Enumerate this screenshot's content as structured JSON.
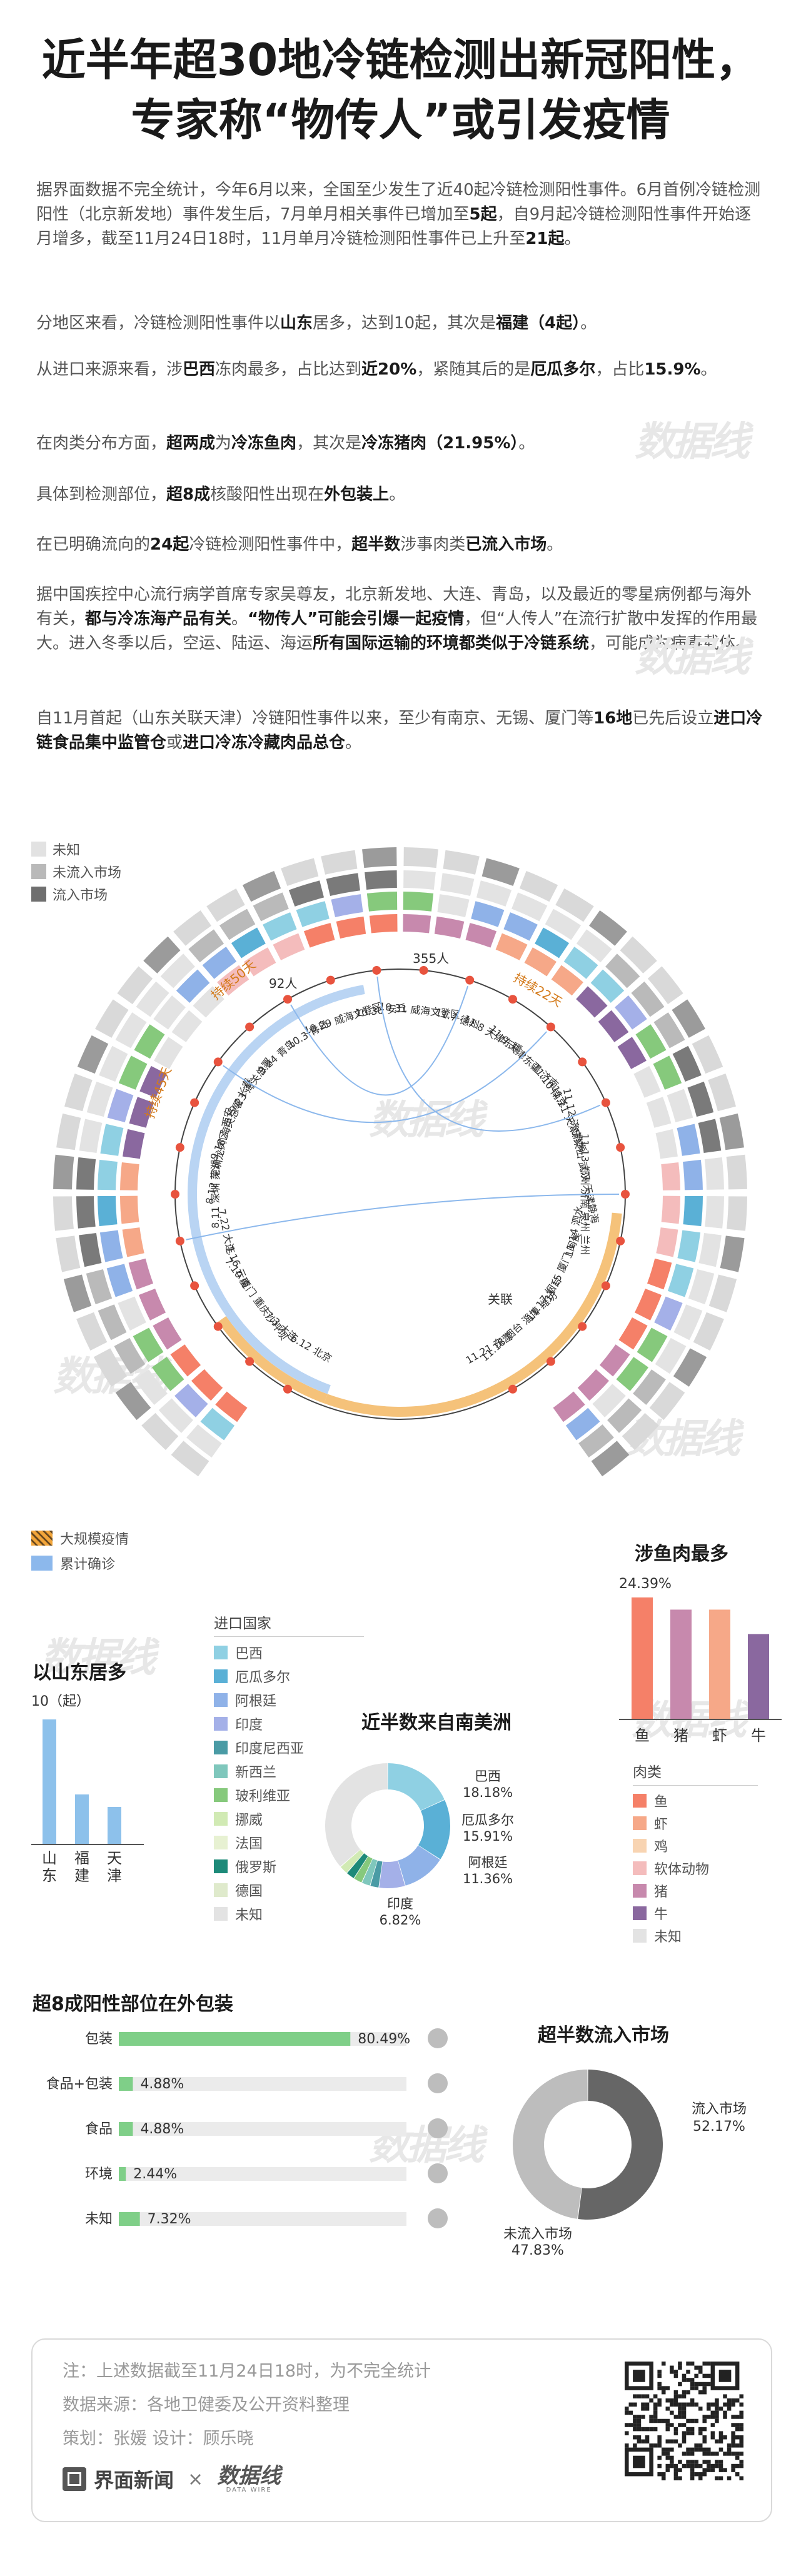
{
  "title_lines": [
    "近半年超30地冷链检测出新冠阳性，",
    "专家称“物传人”或引发疫情"
  ],
  "intro": {
    "p1": [
      "据界面数据不完全统计，今年6月以来，全国至少发生了近40起冷链检测阳性事件。6月首例冷链检测阳性（北京新发地）事件发生后，7月单月相关事件已增加至",
      "5起",
      "，自9月起冷链检测阳性事件开始逐月增多，截至11月24日18时，11月单月冷链检测阳性事件已上升至",
      "21起",
      "。"
    ],
    "p2": [
      "分地区来看，冷链检测阳性事件以",
      "山东",
      "居多，达到10起，其次是",
      "福建（4起）",
      "。"
    ],
    "p3": [
      "从进口来源来看，涉",
      "巴西",
      "冻肉最多，占比达到",
      "近20%",
      "，紧随其后的是",
      "厄瓜多尔",
      "，占比",
      "15.9%",
      "。"
    ],
    "p4": [
      "在肉类分布方面，",
      "超两成",
      "为",
      "冷冻鱼肉",
      "，其次是",
      "冷冻猪肉（21.95%）",
      "。"
    ],
    "p5": [
      "具体到检测部位，",
      "超8成",
      "核酸阳性出现在",
      "外包装上",
      "。"
    ],
    "p6": [
      "在已明确流向的",
      "24起",
      "冷链检测阳性事件中，",
      "超半数",
      "涉事肉类",
      "已流入市场",
      "。"
    ],
    "p7": [
      "据中国疾控中心流行病学首席专家吴尊友，北京新发地、大连、青岛，以及最近的零星病例都与海外有关，",
      "都与冷冻海产品有关",
      "。",
      "“物传人”可能会引爆一起疫情",
      "，但“人传人”在流行扩散中发挥的作用最大。进入冬季以后，空运、陆运、海运",
      "所有国际运输的环境都类似于冷链系统",
      "，可能成为病毒载体。"
    ],
    "p8": [
      "自11月首起（山东关联天津）冷链阳性事件以来，至少有南京、无锡、厦门等",
      "16地",
      "已先后设立",
      "进口冷链食品集中监管仓",
      "或",
      "进口冷冻冷藏肉品总仓",
      "。"
    ]
  },
  "watermark": "数据线",
  "radial_legend": [
    {
      "label": "未知",
      "color": "#e2e2e2"
    },
    {
      "label": "未流入市场",
      "color": "#b9b9b9"
    },
    {
      "label": "流入市场",
      "color": "#6f6f6f"
    }
  ],
  "radial_annotations": {
    "top_count": "355人",
    "c92": "92人",
    "badges": [
      "持续50天",
      "持续45天",
      "持续22天"
    ],
    "guanlian": "关联",
    "dates": [
      "6.12 北京",
      "7.3 大连",
      "7.10 厦门 重庆沙坪坝",
      "7.16 云南",
      "7.22 大连",
      "8.11 深圳 芜湖",
      "8.12 深圳龙岗区 西安",
      "9.18 海关总署 长春",
      "9.23 海关总署",
      "9.24 青岛",
      "10.3 青岛",
      "10.29 威海文登区",
      "10.30 安丘",
      "10.31 威海文登区",
      "11.7 德州",
      "11.8 天津东疆",
      "11.9 天津东疆 济南",
      "11.10 南京",
      "11.11 天津静海",
      "11.12 济宁梁山 武汉 天津静海",
      "11.13 郑州 济南 泉州 兰州",
      "11.14 泗水",
      "11.15 厦门 闽侯",
      "11.17 烟台",
      "11.18 烟台 淄博 潍坊",
      "11.21 东营"
    ]
  },
  "time_legend": [
    {
      "label": "大规模疫情",
      "color": "#f2a53a"
    },
    {
      "label": "累计确诊",
      "color": "#8cb8ec"
    }
  ],
  "fish_chart": {
    "title": "涉鱼肉最多",
    "top_label": "24.39%",
    "categories": [
      "鱼",
      "猪",
      "虾",
      "牛"
    ],
    "values": [
      24.39,
      21.95,
      21.95,
      17.07
    ],
    "colors": [
      "#f58068",
      "#c789ad",
      "#f6a888",
      "#8a689f"
    ],
    "ylim": [
      0,
      25
    ]
  },
  "import_legend": {
    "title": "进口国家",
    "items": [
      {
        "label": "巴西",
        "color": "#8fd0e3"
      },
      {
        "label": "厄瓜多尔",
        "color": "#5ab0d6"
      },
      {
        "label": "阿根廷",
        "color": "#8fb2e8"
      },
      {
        "label": "印度",
        "color": "#a4b0e8"
      },
      {
        "label": "印度尼西亚",
        "color": "#4a9ba5"
      },
      {
        "label": "新西兰",
        "color": "#7fc7bc"
      },
      {
        "label": "玻利维亚",
        "color": "#86c97c"
      },
      {
        "label": "挪威",
        "color": "#d1eab4"
      },
      {
        "label": "法国",
        "color": "#e7f1d2"
      },
      {
        "label": "俄罗斯",
        "color": "#1d8a79"
      },
      {
        "label": "德国",
        "color": "#dfeacc"
      },
      {
        "label": "未知",
        "color": "#e3e3e3"
      }
    ]
  },
  "shandong": {
    "title": "以山东居多",
    "top_label": "10（起）",
    "categories": [
      "山东",
      "福建",
      "天津"
    ],
    "values": [
      10,
      4,
      3
    ],
    "color": "#8dc1eb",
    "ylim": [
      0,
      10
    ]
  },
  "south_america": {
    "title": "近半数来自南美洲",
    "slices": [
      {
        "name": "巴西",
        "value": 18.18,
        "label": "18.18%",
        "color": "#8fd0e3"
      },
      {
        "name": "厄瓜多尔",
        "value": 15.91,
        "label": "15.91%",
        "color": "#5ab0d6"
      },
      {
        "name": "阿根廷",
        "value": 11.36,
        "label": "11.36%",
        "color": "#8fb2e8"
      },
      {
        "name": "印度",
        "value": 6.82,
        "label": "6.82%",
        "color": "#a4b0e8"
      },
      {
        "name": "印度尼西亚",
        "value": 2.27,
        "color": "#4a9ba5"
      },
      {
        "name": "新西兰",
        "value": 2.27,
        "color": "#7fc7bc"
      },
      {
        "name": "玻利维亚",
        "value": 2.27,
        "color": "#86c97c"
      },
      {
        "name": "俄罗斯",
        "value": 2.27,
        "color": "#1d8a79"
      },
      {
        "name": "挪威",
        "value": 2.27,
        "color": "#d1eab4"
      },
      {
        "name": "未知",
        "value": 36.38,
        "color": "#e3e3e3"
      }
    ]
  },
  "meat_legend": {
    "title": "肉类",
    "items": [
      {
        "label": "鱼",
        "color": "#f58068"
      },
      {
        "label": "虾",
        "color": "#f6a888"
      },
      {
        "label": "鸡",
        "color": "#f8d4b2"
      },
      {
        "label": "软体动物",
        "color": "#f4bcbc"
      },
      {
        "label": "猪",
        "color": "#c789ad"
      },
      {
        "label": "牛",
        "color": "#8a689f"
      },
      {
        "label": "未知",
        "color": "#e3e3e3"
      }
    ]
  },
  "package": {
    "title": "超8成阳性部位在外包装",
    "categories": [
      "包装",
      "食品+包装",
      "食品",
      "环境",
      "未知"
    ],
    "values": [
      80.49,
      4.88,
      4.88,
      2.44,
      7.32
    ],
    "labels": [
      "80.49%",
      "4.88%",
      "4.88%",
      "2.44%",
      "7.32%"
    ],
    "color": "#7fcf88",
    "track": "#ebebeb"
  },
  "market": {
    "title": "超半数流入市场",
    "slices": [
      {
        "name": "流入市场",
        "value": 52.17,
        "label": "52.17%",
        "color": "#666666"
      },
      {
        "name": "未流入市场",
        "value": 47.83,
        "label": "47.83%",
        "color": "#bdbdbd"
      }
    ]
  },
  "footer": {
    "note": "注：上述数据截至11月24日18时，为不完全统计",
    "source": "数据来源：各地卫健委及公开资料整理",
    "credits": "策划：张媛   设计：顾乐晓",
    "brand": "界面新闻",
    "times": "×",
    "partner": "数据线",
    "partner_sub": "DATA WIRE"
  }
}
